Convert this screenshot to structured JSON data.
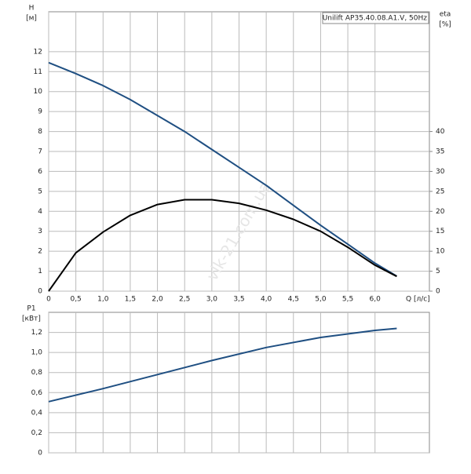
{
  "chart_data": [
    {
      "type": "line",
      "title": "Unilift AP35.40.08.A1.V, 50Hz",
      "ylabel": [
        "H",
        "[м]"
      ],
      "y2label": [
        "eta",
        "[%]"
      ],
      "xlabel": "Q [л/с]",
      "watermark": "vlk-21.com.ua",
      "x": [
        0,
        0.5,
        1,
        1.5,
        2,
        2.5,
        3,
        3.5,
        4,
        4.5,
        5,
        5.5,
        6,
        6.4
      ],
      "xlim": [
        0,
        7
      ],
      "xticks": [
        0,
        {
          "value": 0.5,
          "label": "0,5"
        },
        {
          "value": 1,
          "label": "1,0"
        },
        {
          "value": 1.5,
          "label": "1,5"
        },
        {
          "value": 2,
          "label": "2,0"
        },
        {
          "value": 2.5,
          "label": "2,5"
        },
        {
          "value": 3,
          "label": "3,0"
        },
        {
          "value": 3.5,
          "label": "3,5"
        },
        {
          "value": 4,
          "label": "4,0"
        },
        {
          "value": 4.5,
          "label": "4,5"
        },
        {
          "value": 5,
          "label": "5,0"
        },
        {
          "value": 5.5,
          "label": "5,5"
        },
        {
          "value": 6,
          "label": "6,0"
        }
      ],
      "ylim": [
        0,
        14
      ],
      "yticks": [
        0,
        1,
        2,
        3,
        4,
        5,
        6,
        7,
        8,
        9,
        10,
        11,
        12
      ],
      "y2lim": [
        0,
        70
      ],
      "y2ticks": [
        0,
        5,
        10,
        15,
        20,
        25,
        30,
        35,
        40
      ],
      "grid": true,
      "series": [
        {
          "color": "#1f4f82",
          "values": [
            11.45,
            10.9,
            10.3,
            9.6,
            8.8,
            8.0,
            7.1,
            6.2,
            5.3,
            4.3,
            3.3,
            2.35,
            1.4,
            0.75
          ]
        },
        {
          "color": "#000000",
          "axis": "y2",
          "values": [
            0,
            9.6,
            14.8,
            19,
            21.7,
            22.9,
            22.9,
            22,
            20.3,
            18,
            15,
            11,
            6.5,
            3.7
          ]
        }
      ]
    },
    {
      "type": "line",
      "ylabel": [
        "P1",
        "[кВт]"
      ],
      "x": [
        0,
        1,
        2,
        3,
        4,
        5,
        6,
        6.4
      ],
      "xlim": [
        0,
        7
      ],
      "ylim": [
        0,
        1.4
      ],
      "yticks": [
        0,
        {
          "value": 0.2,
          "label": "0,2"
        },
        {
          "value": 0.4,
          "label": "0,4"
        },
        {
          "value": 0.6,
          "label": "0,6"
        },
        {
          "value": 0.8,
          "label": "0,8"
        },
        {
          "value": 1,
          "label": "1,0"
        },
        {
          "value": 1.2,
          "label": "1,2"
        }
      ],
      "grid": true,
      "series": [
        {
          "color": "#1f4f82",
          "values": [
            0.51,
            0.64,
            0.78,
            0.92,
            1.05,
            1.15,
            1.22,
            1.24
          ]
        }
      ]
    }
  ]
}
